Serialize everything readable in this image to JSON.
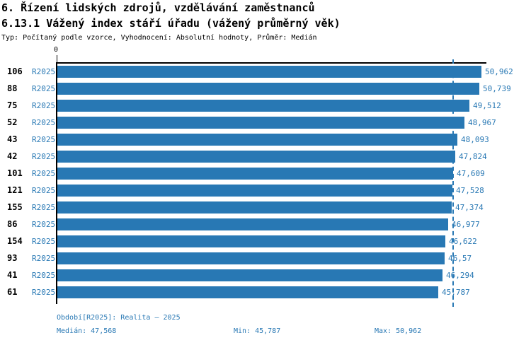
{
  "header": {
    "title1": "6. Řízení lidských zdrojů, vzdělávání zaměstnanců",
    "title2": "6.13.1 Vážený index stáří úřadu (vážený průměrný věk)",
    "subtitle": "Typ: Počítaný podle vzorce, Vyhodnocení: Absolutní hodnoty, Průměr: Medián"
  },
  "chart": {
    "zero_label": "0"
  },
  "footer": {
    "period": "Období[R2025]: Realita – 2025",
    "median": "Medián: 47,568",
    "min": "Min: 45,787",
    "max": "Max: 50,962"
  },
  "colors": {
    "bar": "#2878b4",
    "blue_text": "#2878b4",
    "axis": "#000000",
    "background": "#ffffff"
  },
  "chart_data": {
    "type": "bar",
    "orientation": "horizontal",
    "title": "6.13.1 Vážený index stáří úřadu (vážený průměrný věk)",
    "series_label": "R2025",
    "categories": [
      "106",
      "88",
      "75",
      "52",
      "43",
      "42",
      "101",
      "121",
      "155",
      "86",
      "154",
      "93",
      "41",
      "61"
    ],
    "values": [
      50.962,
      50.739,
      49.512,
      48.967,
      48.093,
      47.824,
      47.609,
      47.528,
      47.374,
      46.977,
      46.622,
      46.57,
      46.294,
      45.787
    ],
    "value_labels": [
      "50,962",
      "50,739",
      "49,512",
      "48,967",
      "48,093",
      "47,824",
      "47,609",
      "47,528",
      "47,374",
      "46,977",
      "46,622",
      "46,57",
      "46,294",
      "45,787"
    ],
    "xlim": [
      0,
      51.8
    ],
    "grid": false,
    "legend_position": "none",
    "median": 47.568,
    "min": 45.787,
    "max": 50.962
  }
}
